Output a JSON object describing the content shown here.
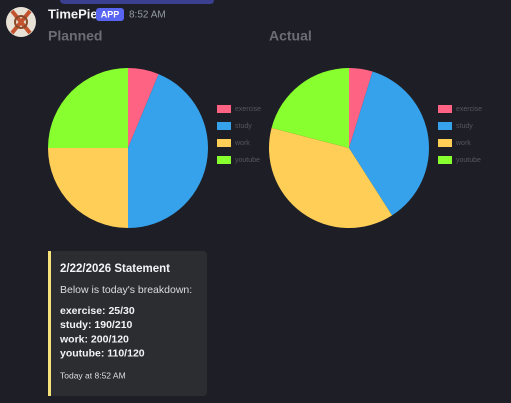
{
  "message": {
    "author": "TimePie",
    "badge": "APP",
    "time": "8:52 AM"
  },
  "chart_data": [
    {
      "type": "pie",
      "title": "Planned",
      "categories": [
        "exercise",
        "study",
        "work",
        "youtube"
      ],
      "values": [
        30,
        210,
        120,
        120
      ],
      "colors": [
        "#ff6384",
        "#36a2eb",
        "#ffce56",
        "#88ff2e"
      ]
    },
    {
      "type": "pie",
      "title": "Actual",
      "categories": [
        "exercise",
        "study",
        "work",
        "youtube"
      ],
      "values": [
        25,
        190,
        200,
        110
      ],
      "colors": [
        "#ff6384",
        "#36a2eb",
        "#ffce56",
        "#88ff2e"
      ]
    }
  ],
  "embed": {
    "title": "2/22/2026 Statement",
    "description": "Below is today's breakdown:",
    "lines": [
      "exercise: 25/30",
      "study: 190/210",
      "work: 200/120",
      "youtube: 110/120"
    ],
    "footer": "Today at 8:52 AM"
  }
}
